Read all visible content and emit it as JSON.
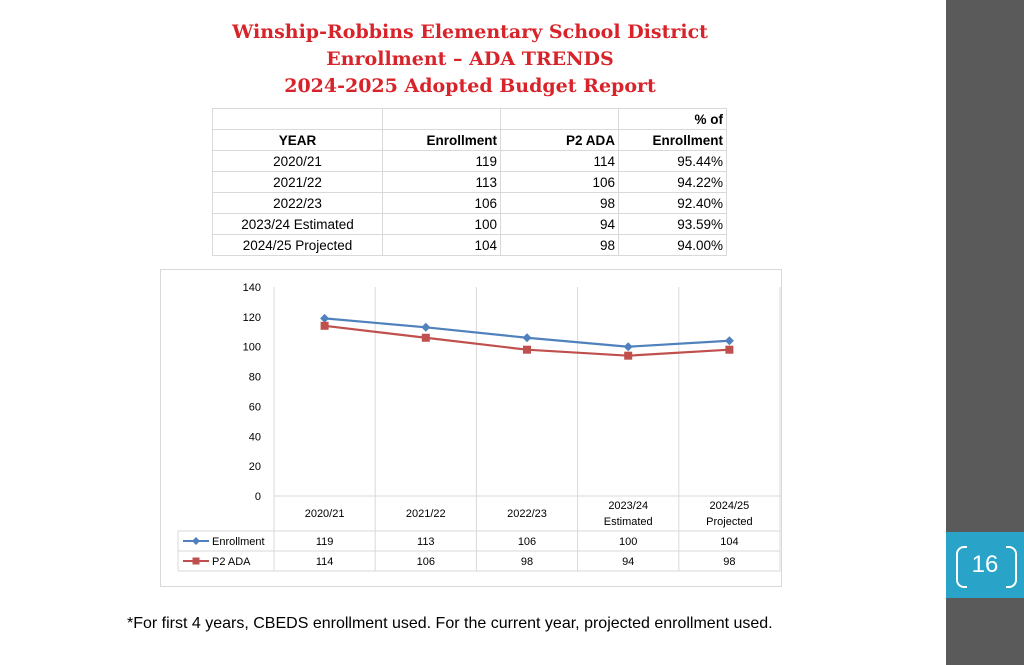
{
  "slide": {
    "title_line1": "Winship-Robbins Elementary School District",
    "title_line2": "Enrollment – ADA TRENDS",
    "title_line3": "2024-2025 Adopted  Budget  Report",
    "footnote": "*For first 4 years, CBEDS enrollment used. For the current year, projected enrollment used.",
    "page_number": "16"
  },
  "table": {
    "headers": {
      "year": "YEAR",
      "enrollment": "Enrollment",
      "ada": "P2 ADA",
      "pct_top": "% of",
      "pct_bottom": "Enrollment"
    },
    "rows": [
      {
        "year": "2020/21",
        "enrollment": "119",
        "ada": "114",
        "pct": "95.44%"
      },
      {
        "year": "2021/22",
        "enrollment": "113",
        "ada": "106",
        "pct": "94.22%"
      },
      {
        "year": "2022/23",
        "enrollment": "106",
        "ada": "98",
        "pct": "92.40%"
      },
      {
        "year": "2023/24 Estimated",
        "enrollment": "100",
        "ada": "94",
        "pct": "93.59%"
      },
      {
        "year": "2024/25 Projected",
        "enrollment": "104",
        "ada": "98",
        "pct": "94.00%"
      }
    ]
  },
  "colors": {
    "title": "#d8232a",
    "enrollment": "#4f81bd",
    "ada": "#c0504d",
    "sidebar": "#5a5a5a",
    "badge": "#2aa3c8"
  },
  "chart_data": {
    "type": "line",
    "categories": [
      [
        "2020/21"
      ],
      [
        "2021/22"
      ],
      [
        "2022/23"
      ],
      [
        "2023/24",
        "Estimated"
      ],
      [
        "2024/25",
        "Projected"
      ]
    ],
    "series": [
      {
        "name": "Enrollment",
        "values": [
          119,
          113,
          106,
          100,
          104
        ],
        "color": "#4f81bd",
        "marker": "diamond"
      },
      {
        "name": "P2 ADA",
        "values": [
          114,
          106,
          98,
          94,
          98
        ],
        "color": "#c0504d",
        "marker": "square"
      }
    ],
    "ylim": [
      0,
      140
    ],
    "yticks": [
      0,
      20,
      40,
      60,
      80,
      100,
      120,
      140
    ],
    "grid": "vertical",
    "legend": "data table below chart"
  }
}
